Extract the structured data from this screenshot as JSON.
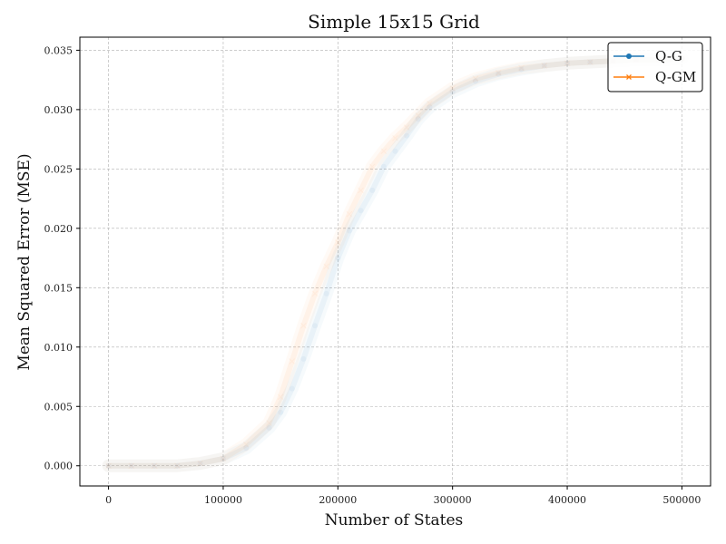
{
  "chart_data": {
    "type": "line",
    "title": "Simple 15x15 Grid",
    "xlabel": "Number of States",
    "ylabel": "Mean Squared Error (MSE)",
    "xlim": [
      -25000,
      525000
    ],
    "ylim": [
      -0.0017,
      0.0361
    ],
    "xticks": [
      0,
      100000,
      200000,
      300000,
      400000,
      500000
    ],
    "yticks": [
      0.0,
      0.005,
      0.01,
      0.015,
      0.02,
      0.025,
      0.03,
      0.035
    ],
    "xtick_labels": [
      "0",
      "100000",
      "200000",
      "300000",
      "400000",
      "500000"
    ],
    "ytick_labels": [
      "0.000",
      "0.005",
      "0.010",
      "0.015",
      "0.020",
      "0.025",
      "0.030",
      "0.035"
    ],
    "grid": true,
    "legend_position": "top-right",
    "series": [
      {
        "name": "Q-G",
        "color": "#1f77b4",
        "marker": "circle",
        "x": [
          0,
          20000,
          40000,
          60000,
          80000,
          100000,
          120000,
          140000,
          150000,
          160000,
          170000,
          180000,
          190000,
          200000,
          210000,
          220000,
          230000,
          240000,
          250000,
          260000,
          270000,
          280000,
          300000,
          320000,
          340000,
          360000,
          380000,
          400000,
          420000,
          440000,
          460000,
          480000,
          500000
        ],
        "y": [
          0.0,
          0.0,
          0.0,
          0.0,
          0.0002,
          0.0006,
          0.0015,
          0.0032,
          0.0045,
          0.0065,
          0.009,
          0.0118,
          0.0145,
          0.0175,
          0.0198,
          0.0215,
          0.0232,
          0.0252,
          0.0265,
          0.0278,
          0.0292,
          0.0302,
          0.0315,
          0.0324,
          0.033,
          0.0334,
          0.0337,
          0.0339,
          0.034,
          0.0341,
          0.0342,
          0.0342,
          0.0343
        ]
      },
      {
        "name": "Q-GM",
        "color": "#ff7f0e",
        "marker": "x",
        "x": [
          0,
          20000,
          40000,
          60000,
          80000,
          100000,
          120000,
          140000,
          150000,
          160000,
          170000,
          180000,
          190000,
          200000,
          210000,
          220000,
          230000,
          240000,
          250000,
          260000,
          270000,
          280000,
          300000,
          320000,
          340000,
          360000,
          380000,
          400000,
          420000,
          440000,
          460000,
          480000,
          500000
        ],
        "y": [
          0.0,
          0.0,
          0.0,
          0.0,
          0.0002,
          0.0006,
          0.0018,
          0.0036,
          0.0058,
          0.0088,
          0.0118,
          0.0145,
          0.0168,
          0.0188,
          0.0212,
          0.0232,
          0.0252,
          0.0265,
          0.0276,
          0.0285,
          0.0295,
          0.0305,
          0.0318,
          0.0326,
          0.0331,
          0.0335,
          0.0337,
          0.0339,
          0.034,
          0.0341,
          0.0342,
          0.0342,
          0.0343
        ]
      }
    ]
  }
}
